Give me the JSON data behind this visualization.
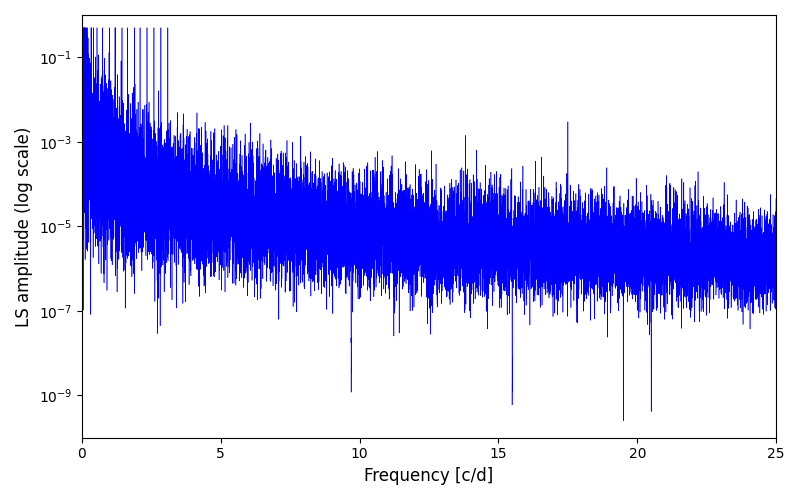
{
  "xlabel": "Frequency [c/d]",
  "ylabel": "LS amplitude (log scale)",
  "xlim": [
    0,
    25
  ],
  "ylim": [
    1e-10,
    1.0
  ],
  "yticks": [
    1e-09,
    1e-07,
    1e-05,
    0.001,
    0.1
  ],
  "line_color": "#0000ff",
  "line_width": 0.4,
  "background_color": "#ffffff",
  "figsize": [
    8.0,
    5.0
  ],
  "dpi": 100,
  "xlabel_fontsize": 12,
  "ylabel_fontsize": 12,
  "xticks": [
    0,
    5,
    10,
    15,
    20,
    25
  ]
}
